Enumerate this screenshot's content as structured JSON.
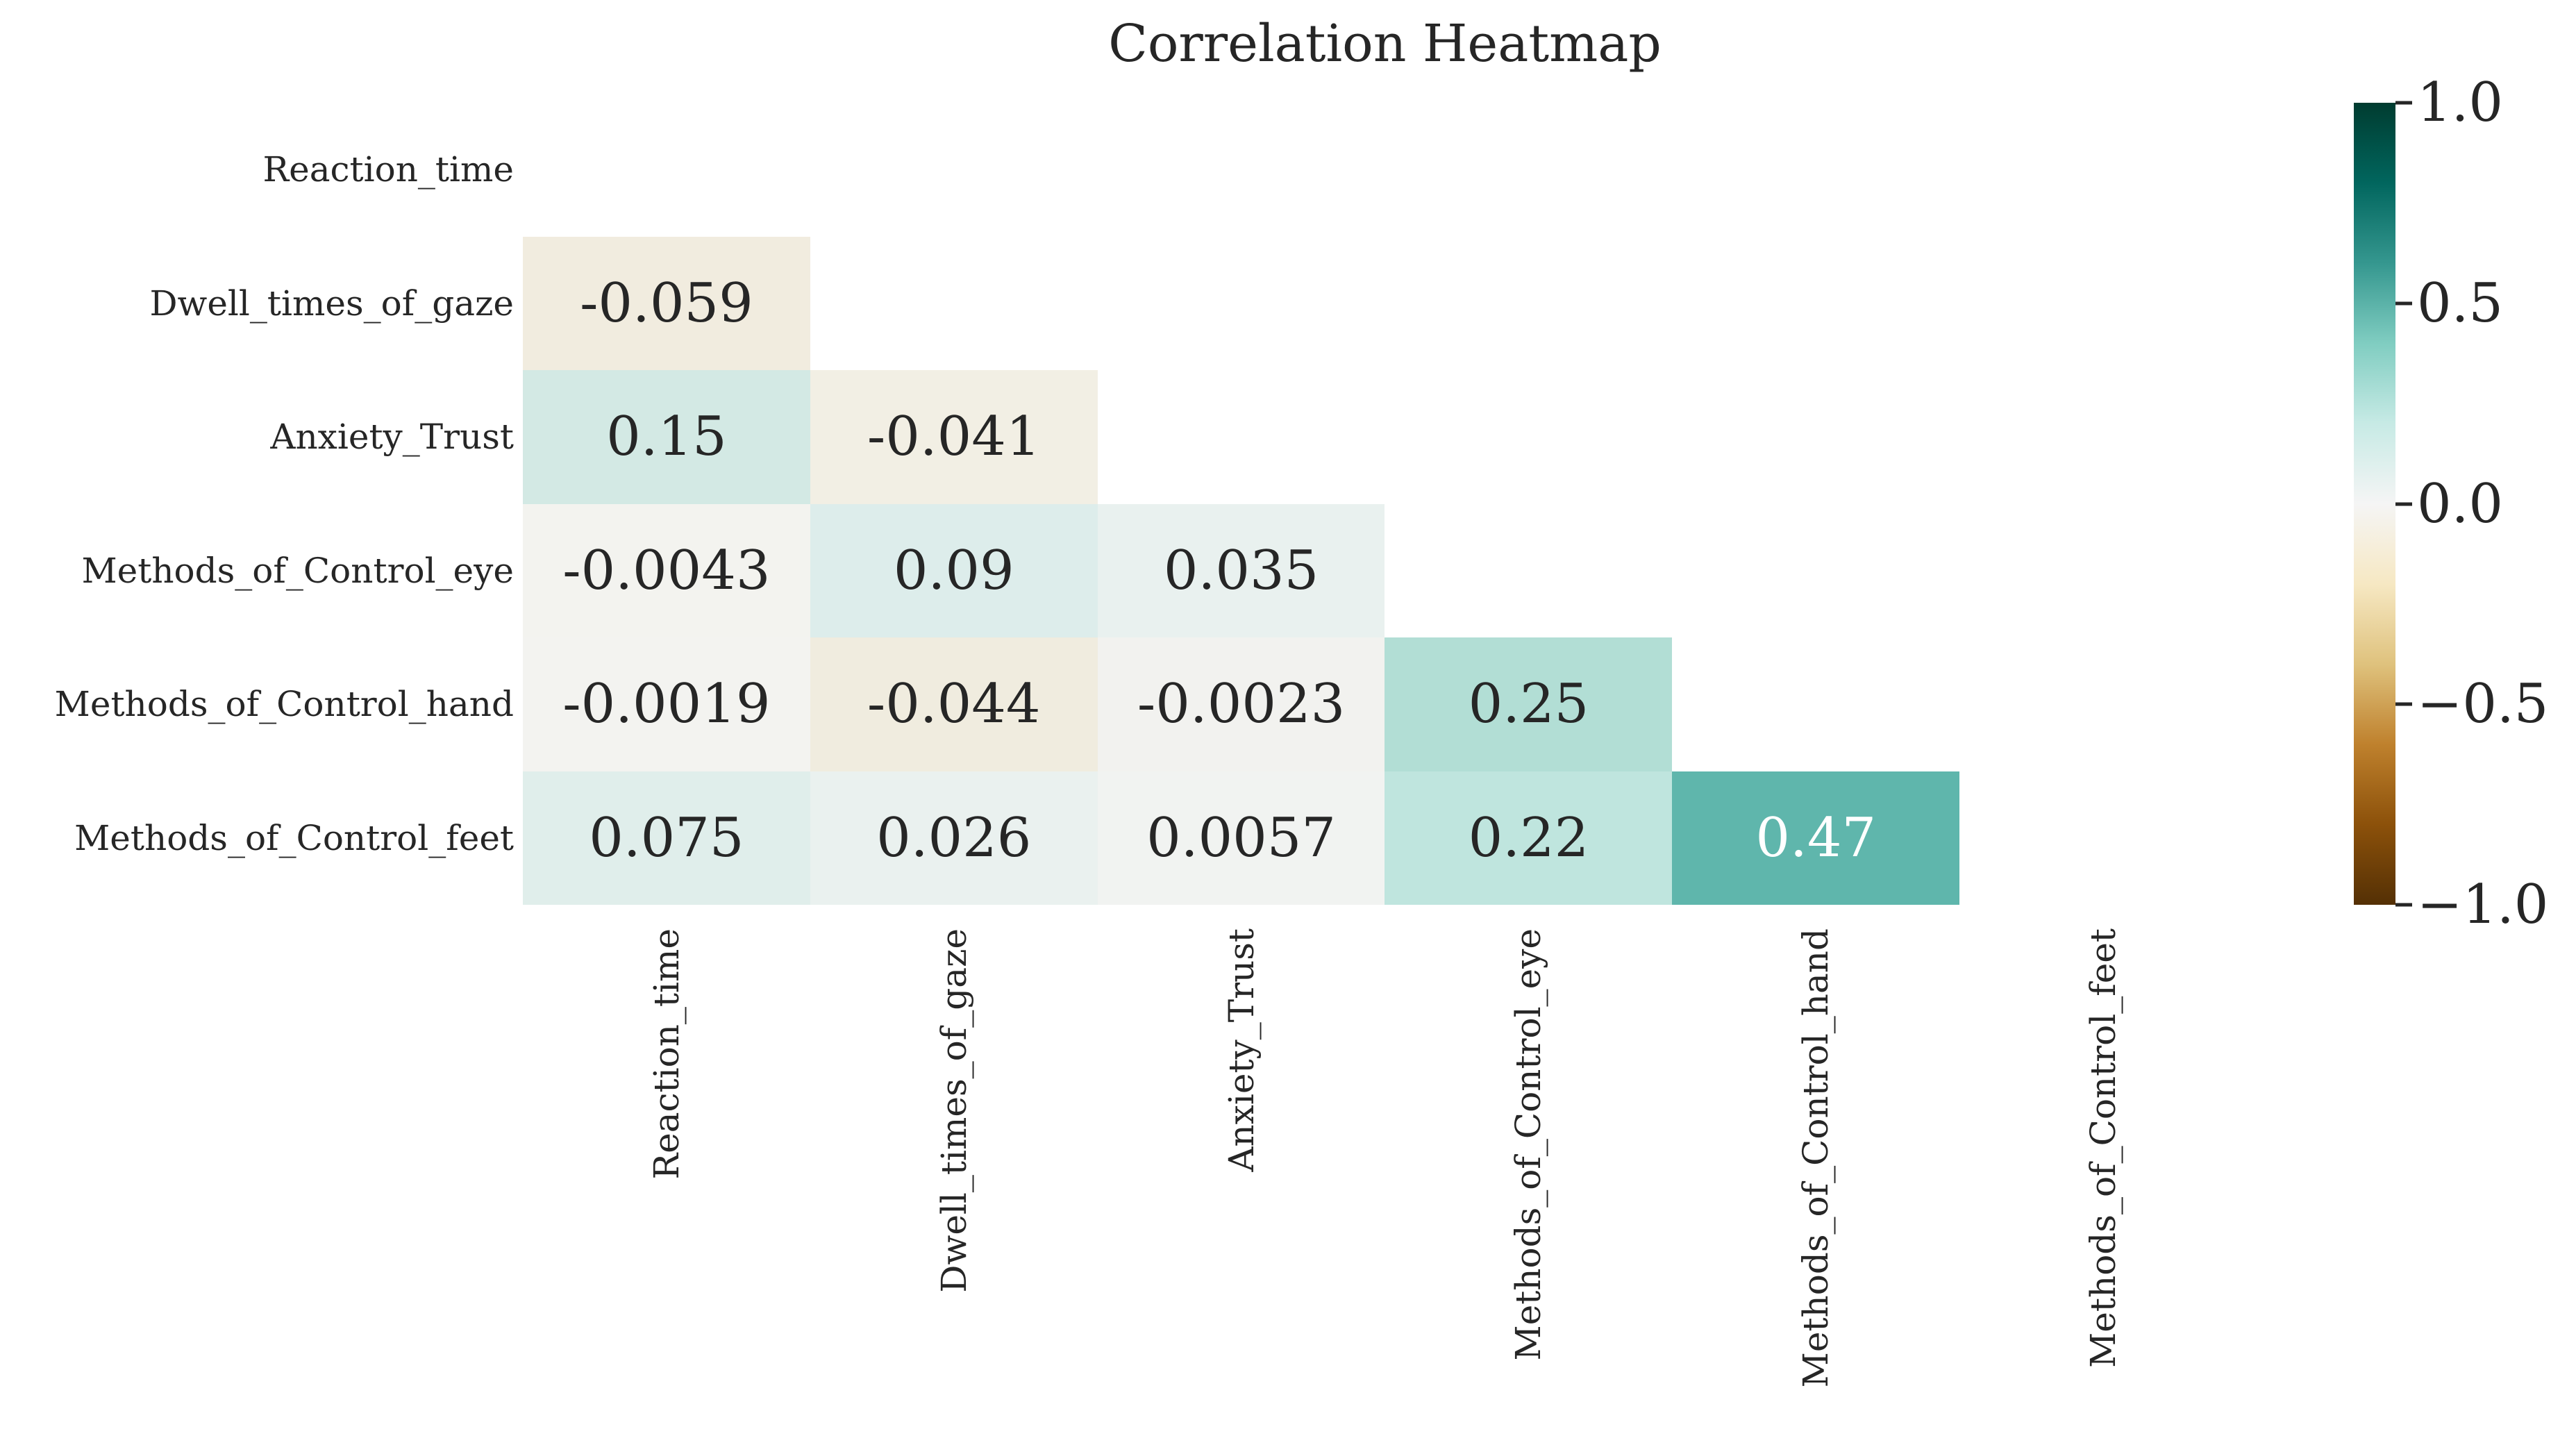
{
  "figure": {
    "background": "#ffffff",
    "text_color": "#262626"
  },
  "chart_data": {
    "type": "heatmap",
    "title": "Correlation Heatmap",
    "variables": [
      "Reaction_time",
      "Dwell_times_of_gaze",
      "Anxiety_Trust",
      "Methods_of_Control_eye",
      "Methods_of_Control_hand",
      "Methods_of_Control_feet"
    ],
    "mask": "upper triangle and diagonal hidden (lower-triangle correlation matrix)",
    "colormap": "BrBG",
    "vmin": -1.0,
    "vmax": 1.0,
    "grid": false,
    "legend_position": "right-colorbar",
    "annotation_format": ".2g",
    "cells": [
      {
        "r": 1,
        "c": 0,
        "value": -0.059,
        "label": "-0.059",
        "bg": "#f1ecdf",
        "fg": "#262626"
      },
      {
        "r": 2,
        "c": 0,
        "value": 0.15,
        "label": "0.15",
        "bg": "#d3e9e4",
        "fg": "#262626"
      },
      {
        "r": 2,
        "c": 1,
        "value": -0.041,
        "label": "-0.041",
        "bg": "#f2efe4",
        "fg": "#262626"
      },
      {
        "r": 3,
        "c": 0,
        "value": -0.0043,
        "label": "-0.0043",
        "bg": "#f3f3ef",
        "fg": "#262626"
      },
      {
        "r": 3,
        "c": 1,
        "value": 0.09,
        "label": "0.09",
        "bg": "#ddedeb",
        "fg": "#262626"
      },
      {
        "r": 3,
        "c": 2,
        "value": 0.035,
        "label": "0.035",
        "bg": "#e9f1ef",
        "fg": "#262626"
      },
      {
        "r": 4,
        "c": 0,
        "value": -0.0019,
        "label": "-0.0019",
        "bg": "#f3f3f0",
        "fg": "#262626"
      },
      {
        "r": 4,
        "c": 1,
        "value": -0.044,
        "label": "-0.044",
        "bg": "#f0ecdf",
        "fg": "#262626"
      },
      {
        "r": 4,
        "c": 2,
        "value": -0.0023,
        "label": "-0.0023",
        "bg": "#f2f2ef",
        "fg": "#262626"
      },
      {
        "r": 4,
        "c": 3,
        "value": 0.25,
        "label": "0.25",
        "bg": "#b2ded5",
        "fg": "#262626"
      },
      {
        "r": 5,
        "c": 0,
        "value": 0.075,
        "label": "0.075",
        "bg": "#e0eeeb",
        "fg": "#262626"
      },
      {
        "r": 5,
        "c": 1,
        "value": 0.026,
        "label": "0.026",
        "bg": "#eaf1ef",
        "fg": "#262626"
      },
      {
        "r": 5,
        "c": 2,
        "value": 0.0057,
        "label": "0.0057",
        "bg": "#f1f3f1",
        "fg": "#262626"
      },
      {
        "r": 5,
        "c": 3,
        "value": 0.22,
        "label": "0.22",
        "bg": "#bfe5de",
        "fg": "#262626"
      },
      {
        "r": 5,
        "c": 4,
        "value": 0.47,
        "label": "0.47",
        "bg": "#5fb6ac",
        "fg": "#ffffff"
      }
    ],
    "colorbar": {
      "ticks": [
        {
          "label": "1.0",
          "value": 1.0
        },
        {
          "label": "0.5",
          "value": 0.5
        },
        {
          "label": "0.0",
          "value": 0.0
        },
        {
          "label": "−0.5",
          "value": -0.5
        },
        {
          "label": "−1.0",
          "value": -1.0
        }
      ],
      "gradient_top_to_bottom": [
        "#003c30",
        "#01665e",
        "#35978f",
        "#80cdc1",
        "#c7eae5",
        "#f5f5f5",
        "#f6e8c3",
        "#dfc27d",
        "#bf812d",
        "#8c510a",
        "#543005"
      ]
    }
  }
}
